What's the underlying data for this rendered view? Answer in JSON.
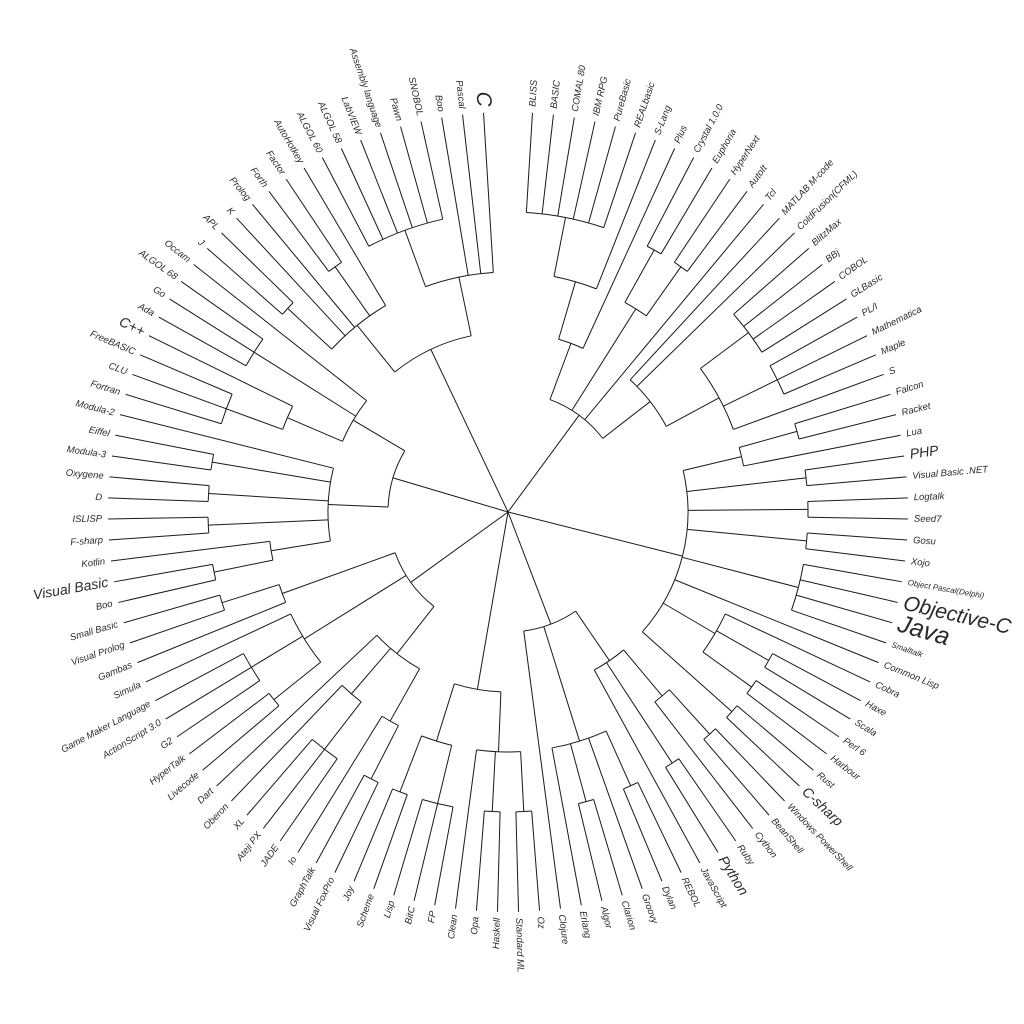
{
  "diagram": {
    "type": "circular-dendrogram",
    "line_color": "#1a1a1a",
    "text_color": "#2a2a2a",
    "tree": {
      "children": [
        {
          "children": [
            {
              "children": [
                {
                  "children": [
                    {
                      "children": [
                        {
                          "label": "BLISS"
                        },
                        {
                          "label": "BASIC"
                        },
                        {
                          "label": "COMAL 80"
                        },
                        {
                          "label": "IBM RPG"
                        },
                        {
                          "label": "PureBasic"
                        },
                        {
                          "label": "REALbasic"
                        }
                      ]
                    },
                    {
                      "label": "S-Lang"
                    }
                  ]
                },
                {
                  "label": "Plus"
                }
              ]
            },
            {
              "children": [
                {
                  "children": [
                    {
                      "label": "Crystal 1.0.0"
                    },
                    {
                      "label": "Euphoria"
                    }
                  ]
                },
                {
                  "children": [
                    {
                      "label": "HyperNext"
                    },
                    {
                      "label": "AutoIt"
                    }
                  ]
                }
              ]
            },
            {
              "label": "Tcl"
            },
            {
              "children": [
                {
                  "label": "MATLAB M-code"
                },
                {
                  "label": "ColdFusion(CFML)"
                },
                {
                  "children": [
                    {
                      "children": [
                        {
                          "label": "BlitzMax"
                        },
                        {
                          "label": "BBj"
                        },
                        {
                          "label": "COBOL"
                        },
                        {
                          "label": "GLBasic"
                        }
                      ]
                    },
                    {
                      "children": [
                        {
                          "label": "PL/I"
                        },
                        {
                          "label": "Mathematica"
                        },
                        {
                          "label": "Maple"
                        }
                      ]
                    },
                    {
                      "label": "S"
                    }
                  ]
                }
              ]
            }
          ]
        },
        {
          "children": [
            {
              "children": [
                {
                  "children": [
                    {
                      "label": "Falcon"
                    },
                    {
                      "label": "Racket"
                    }
                  ]
                },
                {
                  "label": "Lua"
                }
              ]
            },
            {
              "children": [
                {
                  "label": "PHP",
                  "size": "large"
                },
                {
                  "label": "Visual Basic .NET"
                }
              ]
            },
            {
              "children": [
                {
                  "label": "Logtalk"
                },
                {
                  "label": "Seed7"
                }
              ]
            },
            {
              "children": [
                {
                  "label": "Gosu"
                },
                {
                  "label": "Xojo"
                }
              ]
            },
            {
              "children": [
                {
                  "label": "Object Pascal(Delphi)",
                  "size": "small"
                },
                {
                  "label": "Objective-C",
                  "size": "xlarge"
                },
                {
                  "label": "Java",
                  "size": "xxlarge"
                },
                {
                  "label": "Smalltalk",
                  "size": "small"
                }
              ]
            },
            {
              "label": "Common Lisp"
            },
            {
              "children": [
                {
                  "label": "Cobra"
                },
                {
                  "children": [
                    {
                      "label": "Haxe"
                    },
                    {
                      "label": "Scala"
                    }
                  ]
                },
                {
                  "children": [
                    {
                      "label": "Perl 6"
                    },
                    {
                      "label": "Harbour"
                    }
                  ]
                }
              ]
            },
            {
              "children": [
                {
                  "label": "Rust"
                },
                {
                  "label": "C-sharp",
                  "size": "large"
                }
              ]
            }
          ]
        },
        {
          "children": [
            {
              "children": [
                {
                  "children": [
                    {
                      "children": [
                        {
                          "label": "Windows PowerShell"
                        },
                        {
                          "label": "BeanShell"
                        }
                      ]
                    },
                    {
                      "label": "Cython"
                    }
                  ]
                },
                {
                  "children": [
                    {
                      "label": "Ruby"
                    },
                    {
                      "label": "Python",
                      "size": "large"
                    }
                  ]
                },
                {
                  "label": "JavaScript"
                }
              ]
            },
            {
              "children": [
                {
                  "children": [
                    {
                      "label": "REBOL"
                    },
                    {
                      "label": "Dylan"
                    }
                  ]
                },
                {
                  "label": "Groovy"
                },
                {
                  "children": [
                    {
                      "label": "Clarion"
                    },
                    {
                      "label": "Algor"
                    }
                  ]
                },
                {
                  "label": "Erlang"
                }
              ]
            },
            {
              "label": "Clojure"
            }
          ]
        },
        {
          "children": [
            {
              "children": [
                {
                  "children": [
                    {
                      "label": "Oz"
                    },
                    {
                      "label": "Standard ML"
                    }
                  ]
                },
                {
                  "children": [
                    {
                      "label": "Haskell"
                    },
                    {
                      "label": "Opa"
                    }
                  ]
                },
                {
                  "label": "Clean"
                }
              ]
            },
            {
              "children": [
                {
                  "children": [
                    {
                      "label": "FP"
                    },
                    {
                      "label": "BitC"
                    },
                    {
                      "label": "Lisp"
                    }
                  ]
                },
                {
                  "children": [
                    {
                      "label": "Scheme"
                    },
                    {
                      "label": "Joy"
                    }
                  ]
                }
              ]
            }
          ]
        },
        {
          "children": [
            {
              "children": [
                {
                  "children": [
                    {
                      "children": [
                        {
                          "label": "Visual FoxPro"
                        },
                        {
                          "label": "GraphTalk"
                        }
                      ]
                    },
                    {
                      "label": "Io"
                    }
                  ]
                },
                {
                  "children": [
                    {
                      "children": [
                        {
                          "label": "JADE"
                        },
                        {
                          "label": "Ateji PX"
                        },
                        {
                          "label": "XL"
                        }
                      ]
                    },
                    {
                      "label": "Oberon"
                    }
                  ]
                },
                {
                  "label": "Dart"
                }
              ]
            },
            {
              "children": [
                {
                  "children": [
                    {
                      "label": "Livecode"
                    },
                    {
                      "label": "HyperTalk"
                    }
                  ]
                },
                {
                  "children": [
                    {
                      "label": "G2"
                    },
                    {
                      "label": "ActionScript 3.0"
                    },
                    {
                      "label": "Game Maker Language"
                    }
                  ]
                },
                {
                  "label": "Simula"
                }
              ]
            },
            {
              "children": [
                {
                  "label": "Gambas"
                },
                {
                  "children": [
                    {
                      "label": "Visual Prolog"
                    },
                    {
                      "label": "Small Basic"
                    }
                  ]
                }
              ]
            }
          ]
        },
        {
          "children": [
            {
              "children": [
                {
                  "children": [
                    {
                      "children": [
                        {
                          "label": "Boo"
                        },
                        {
                          "label": "Visual Basic",
                          "size": "large"
                        }
                      ]
                    },
                    {
                      "label": "Kotlin"
                    }
                  ]
                },
                {
                  "children": [
                    {
                      "label": "F-sharp"
                    },
                    {
                      "label": "ISLISP"
                    }
                  ]
                },
                {
                  "children": [
                    {
                      "label": "D"
                    },
                    {
                      "label": "Oxygene"
                    }
                  ]
                },
                {
                  "children": [
                    {
                      "label": "Modula-3"
                    },
                    {
                      "label": "Eiffel"
                    }
                  ]
                },
                {
                  "label": "Modula-2"
                }
              ]
            },
            {
              "children": [
                {
                  "children": [
                    {
                      "children": [
                        {
                          "label": "Fortran"
                        },
                        {
                          "label": "CLU"
                        },
                        {
                          "label": "FreeBASIC"
                        }
                      ]
                    },
                    {
                      "label": "C++",
                      "size": "large"
                    }
                  ]
                },
                {
                  "children": [
                    {
                      "label": "Ada"
                    },
                    {
                      "label": "Go"
                    },
                    {
                      "label": "ALGOL 68"
                    }
                  ]
                },
                {
                  "label": "Occam"
                }
              ]
            }
          ]
        },
        {
          "children": [
            {
              "children": [
                {
                  "children": [
                    {
                      "label": "J"
                    },
                    {
                      "label": "APL"
                    }
                  ]
                },
                {
                  "label": "K"
                },
                {
                  "label": "Prolog"
                },
                {
                  "children": [
                    {
                      "label": "Forth"
                    },
                    {
                      "label": "Factor"
                    }
                  ]
                },
                {
                  "label": "AutoHotkey"
                }
              ]
            },
            {
              "children": [
                {
                  "children": [
                    {
                      "label": "ALGOL 60"
                    },
                    {
                      "label": "ALGOL 58"
                    },
                    {
                      "label": "LabVIEW"
                    },
                    {
                      "label": "Assembly language"
                    },
                    {
                      "label": "Pawn"
                    },
                    {
                      "label": "SNOBOL"
                    }
                  ]
                },
                {
                  "label": "Boo"
                },
                {
                  "label": "Pascal"
                },
                {
                  "label": "C",
                  "size": "xlarge"
                }
              ]
            }
          ]
        }
      ]
    }
  }
}
